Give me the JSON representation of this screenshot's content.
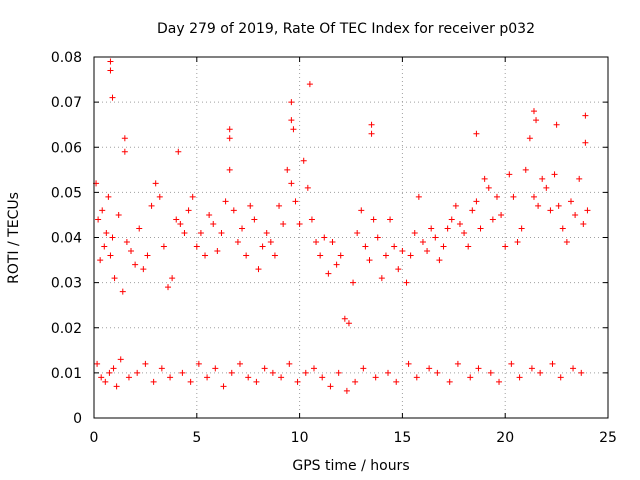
{
  "chart_data": {
    "type": "scatter",
    "title": "Day 279 of 2019, Rate Of TEC Index for receiver p032",
    "xlabel": "GPS time / hours",
    "ylabel": "ROTI / TECUs",
    "xlim": [
      0,
      25
    ],
    "ylim": [
      0,
      0.08
    ],
    "xticks": [
      0,
      5,
      10,
      15,
      20,
      25
    ],
    "xtick_labels": [
      "0",
      "5",
      "10",
      "15",
      "20",
      "25"
    ],
    "yticks": [
      0,
      0.01,
      0.02,
      0.03,
      0.04,
      0.05,
      0.06,
      0.07,
      0.08
    ],
    "ytick_labels": [
      "0",
      "0.01",
      "0.02",
      "0.03",
      "0.04",
      "0.05",
      "0.06",
      "0.07",
      "0.08"
    ],
    "grid": true,
    "marker": "plus",
    "color": "#ff0000",
    "series": [
      {
        "name": "ROTI",
        "x": [
          0.1,
          0.2,
          0.3,
          0.4,
          0.5,
          0.6,
          0.7,
          0.8,
          0.9,
          1.0,
          1.2,
          1.4,
          1.6,
          1.8,
          2.0,
          2.2,
          2.4,
          2.6,
          2.8,
          3.0,
          3.2,
          3.4,
          3.6,
          3.8,
          4.0,
          4.2,
          4.4,
          4.6,
          4.8,
          5.0,
          5.2,
          5.4,
          5.6,
          5.8,
          6.0,
          6.2,
          6.4,
          6.6,
          6.8,
          7.0,
          7.2,
          7.4,
          7.6,
          7.8,
          8.0,
          8.2,
          8.4,
          8.6,
          8.8,
          9.0,
          9.2,
          9.4,
          9.6,
          9.8,
          10.0,
          10.2,
          10.4,
          10.6,
          10.8,
          11.0,
          11.2,
          11.4,
          11.6,
          11.8,
          12.0,
          12.2,
          12.4,
          12.6,
          12.8,
          13.0,
          13.2,
          13.4,
          13.6,
          13.8,
          14.0,
          14.2,
          14.4,
          14.6,
          14.8,
          15.0,
          15.2,
          15.4,
          15.6,
          15.8,
          16.0,
          16.2,
          16.4,
          16.6,
          16.8,
          17.0,
          17.2,
          17.4,
          17.6,
          17.8,
          18.0,
          18.2,
          18.4,
          18.6,
          18.8,
          19.0,
          19.2,
          19.4,
          19.6,
          19.8,
          20.0,
          20.2,
          20.4,
          20.6,
          20.8,
          21.0,
          21.2,
          21.4,
          21.6,
          21.8,
          22.0,
          22.2,
          22.4,
          22.6,
          22.8,
          23.0,
          23.2,
          23.4,
          23.6,
          23.8,
          24.0,
          0.8,
          0.8,
          0.9,
          1.5,
          1.5,
          9.6,
          9.6,
          9.7,
          10.5,
          13.5,
          13.5,
          6.6,
          6.6,
          4.1,
          18.6,
          21.4,
          21.5,
          22.5,
          23.9,
          23.9,
          0.15,
          0.35,
          0.55,
          0.75,
          0.95,
          1.1,
          1.3,
          1.7,
          2.1,
          2.5,
          2.9,
          3.3,
          3.7,
          4.3,
          4.7,
          5.1,
          5.5,
          5.9,
          6.3,
          6.7,
          7.1,
          7.5,
          7.9,
          8.3,
          8.7,
          9.1,
          9.5,
          9.9,
          10.3,
          10.7,
          11.1,
          11.5,
          11.9,
          12.3,
          12.7,
          13.1,
          13.7,
          14.3,
          14.7,
          15.3,
          15.7,
          16.3,
          16.7,
          17.3,
          17.7,
          18.3,
          18.7,
          19.3,
          19.7,
          20.3,
          20.7,
          21.3,
          21.7,
          22.3,
          22.7,
          23.3,
          23.7
        ],
        "y": [
          0.052,
          0.044,
          0.035,
          0.046,
          0.038,
          0.041,
          0.049,
          0.036,
          0.04,
          0.031,
          0.045,
          0.028,
          0.039,
          0.037,
          0.034,
          0.042,
          0.033,
          0.036,
          0.047,
          0.052,
          0.049,
          0.038,
          0.029,
          0.031,
          0.044,
          0.043,
          0.041,
          0.046,
          0.049,
          0.038,
          0.041,
          0.036,
          0.045,
          0.043,
          0.037,
          0.041,
          0.048,
          0.055,
          0.046,
          0.039,
          0.042,
          0.036,
          0.047,
          0.044,
          0.033,
          0.038,
          0.041,
          0.039,
          0.036,
          0.047,
          0.043,
          0.055,
          0.052,
          0.048,
          0.043,
          0.057,
          0.051,
          0.044,
          0.039,
          0.036,
          0.04,
          0.032,
          0.039,
          0.034,
          0.036,
          0.022,
          0.021,
          0.03,
          0.041,
          0.046,
          0.038,
          0.035,
          0.044,
          0.04,
          0.031,
          0.036,
          0.044,
          0.038,
          0.033,
          0.037,
          0.03,
          0.036,
          0.041,
          0.049,
          0.039,
          0.037,
          0.042,
          0.04,
          0.035,
          0.038,
          0.042,
          0.044,
          0.047,
          0.043,
          0.041,
          0.038,
          0.046,
          0.048,
          0.042,
          0.053,
          0.051,
          0.044,
          0.049,
          0.045,
          0.038,
          0.054,
          0.049,
          0.039,
          0.042,
          0.055,
          0.062,
          0.049,
          0.047,
          0.053,
          0.051,
          0.046,
          0.054,
          0.047,
          0.042,
          0.039,
          0.048,
          0.045,
          0.053,
          0.043,
          0.046,
          0.079,
          0.077,
          0.071,
          0.062,
          0.059,
          0.07,
          0.066,
          0.064,
          0.074,
          0.065,
          0.063,
          0.064,
          0.062,
          0.059,
          0.063,
          0.068,
          0.066,
          0.065,
          0.067,
          0.061,
          0.012,
          0.009,
          0.008,
          0.01,
          0.011,
          0.007,
          0.013,
          0.009,
          0.01,
          0.012,
          0.008,
          0.011,
          0.009,
          0.01,
          0.008,
          0.012,
          0.009,
          0.011,
          0.007,
          0.01,
          0.012,
          0.009,
          0.008,
          0.011,
          0.01,
          0.009,
          0.012,
          0.008,
          0.01,
          0.011,
          0.009,
          0.007,
          0.01,
          0.006,
          0.008,
          0.011,
          0.009,
          0.01,
          0.008,
          0.012,
          0.009,
          0.011,
          0.01,
          0.008,
          0.012,
          0.009,
          0.011,
          0.01,
          0.008,
          0.012,
          0.009,
          0.011,
          0.01,
          0.012,
          0.009,
          0.011,
          0.01
        ]
      }
    ]
  }
}
